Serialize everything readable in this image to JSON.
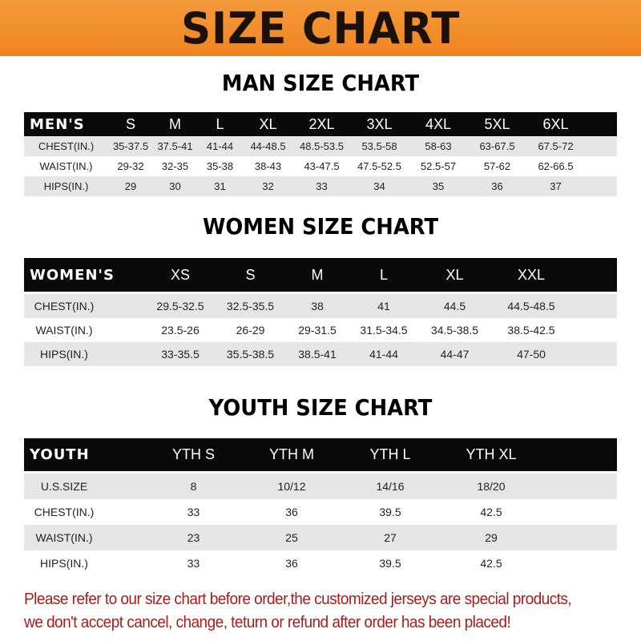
{
  "banner": {
    "title": "SIZE CHART",
    "color": "#ef8420"
  },
  "men": {
    "title": "MAN SIZE CHART",
    "header": [
      "MEN'S",
      "S",
      "M",
      "L",
      "XL",
      "2XL",
      "3XL",
      "4XL",
      "5XL",
      "6XL"
    ],
    "rows": [
      [
        "CHEST(IN.)",
        "35-37.5",
        "37.5-41",
        "41-44",
        "44-48.5",
        "48.5-53.5",
        "53.5-58",
        "58-63",
        "63-67.5",
        "67.5-72"
      ],
      [
        "WAIST(IN.)",
        "29-32",
        "32-35",
        "35-38",
        "38-43",
        "43-47.5",
        "47.5-52.5",
        "52.5-57",
        "57-62",
        "62-66.5"
      ],
      [
        "HIPS(IN.)",
        "29",
        "30",
        "31",
        "32",
        "33",
        "34",
        "35",
        "36",
        "37"
      ]
    ]
  },
  "women": {
    "title": "WOMEN SIZE CHART",
    "header": [
      "WOMEN'S",
      "XS",
      "S",
      "M",
      "L",
      "XL",
      "XXL"
    ],
    "rows": [
      [
        "CHEST(IN.)",
        "29.5-32.5",
        "32.5-35.5",
        "38",
        "41",
        "44.5",
        "44.5-48.5"
      ],
      [
        "WAIST(IN.)",
        "23.5-26",
        "26-29",
        "29-31.5",
        "31.5-34.5",
        "34.5-38.5",
        "38.5-42.5"
      ],
      [
        "HIPS(IN.)",
        "33-35.5",
        "35.5-38.5",
        "38.5-41",
        "41-44",
        "44-47",
        "47-50"
      ]
    ]
  },
  "youth": {
    "title": "YOUTH SIZE CHART",
    "header": [
      "YOUTH",
      "YTH S",
      "YTH M",
      "YTH L",
      "YTH XL"
    ],
    "rows": [
      [
        "U.S.SIZE",
        "8",
        "10/12",
        "14/16",
        "18/20"
      ],
      [
        "CHEST(IN.)",
        "33",
        "36",
        "39.5",
        "42.5"
      ],
      [
        "WAIST(IN.)",
        "23",
        "25",
        "27",
        "29"
      ],
      [
        "HIPS(IN.)",
        "33",
        "36",
        "39.5",
        "42.5"
      ]
    ]
  },
  "footer": {
    "line1": "Please refer to our size chart before order,the customized jerseys are special products,",
    "line2": "we don't accept cancel, change, teturn or refund after order has been placed!",
    "color": "#a81c1c"
  }
}
